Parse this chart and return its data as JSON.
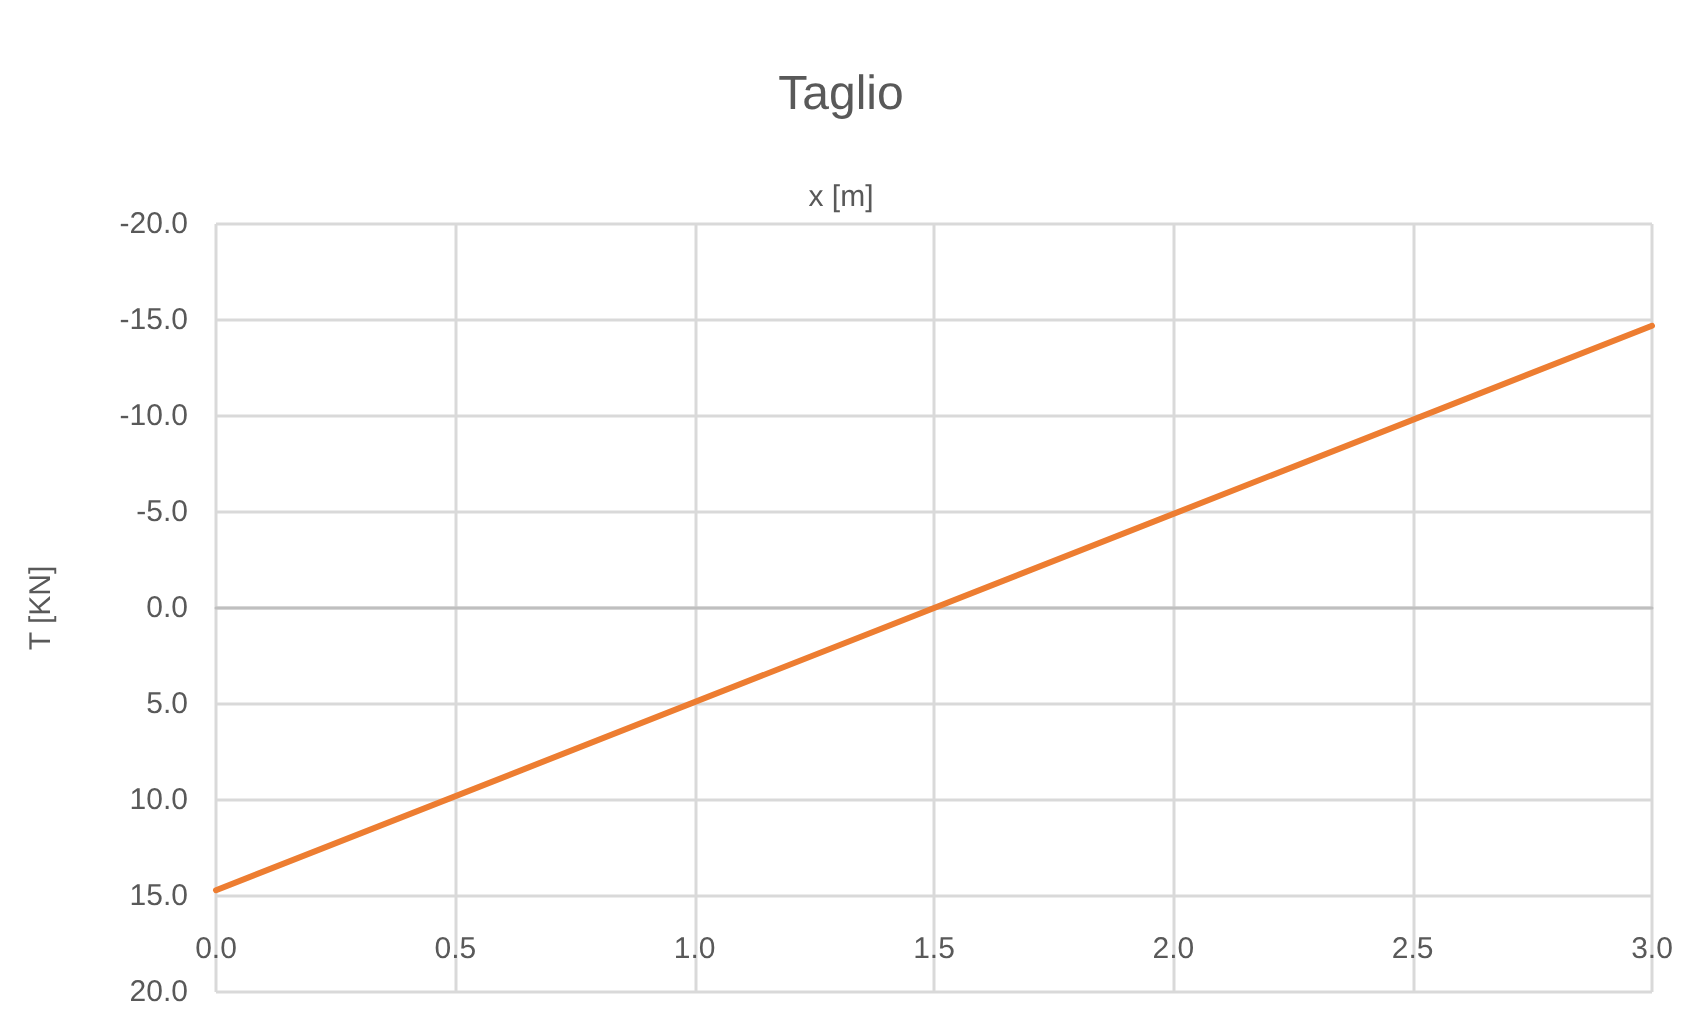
{
  "chart_data": {
    "type": "line",
    "title": "Taglio",
    "xlabel": "x [m]",
    "ylabel": "T [KN]",
    "x": [
      0,
      3
    ],
    "series": [
      {
        "color": "#ed7d31",
        "values": [
          14.7,
          -14.7
        ]
      }
    ],
    "xlim": [
      0,
      3
    ],
    "xticks": [
      {
        "value": 0,
        "label": "0.0"
      },
      {
        "value": 0.5,
        "label": "0.5"
      },
      {
        "value": 1,
        "label": "1.0"
      },
      {
        "value": 1.5,
        "label": "1.5"
      },
      {
        "value": 2,
        "label": "2.0"
      },
      {
        "value": 2.5,
        "label": "2.5"
      },
      {
        "value": 3,
        "label": "3.0"
      }
    ],
    "ylim": [
      20,
      -20
    ],
    "yticks": [
      {
        "value": -20,
        "label": "-20.0"
      },
      {
        "value": -15,
        "label": "-15.0"
      },
      {
        "value": -10,
        "label": "-10.0"
      },
      {
        "value": -5,
        "label": "-5.0"
      },
      {
        "value": 0,
        "label": "0.0"
      },
      {
        "value": 5,
        "label": "5.0"
      },
      {
        "value": 10,
        "label": "10.0"
      },
      {
        "value": 15,
        "label": "15.0"
      },
      {
        "value": 20,
        "label": "20.0"
      }
    ],
    "grid": true,
    "marker": "none",
    "line_style": "solid"
  }
}
